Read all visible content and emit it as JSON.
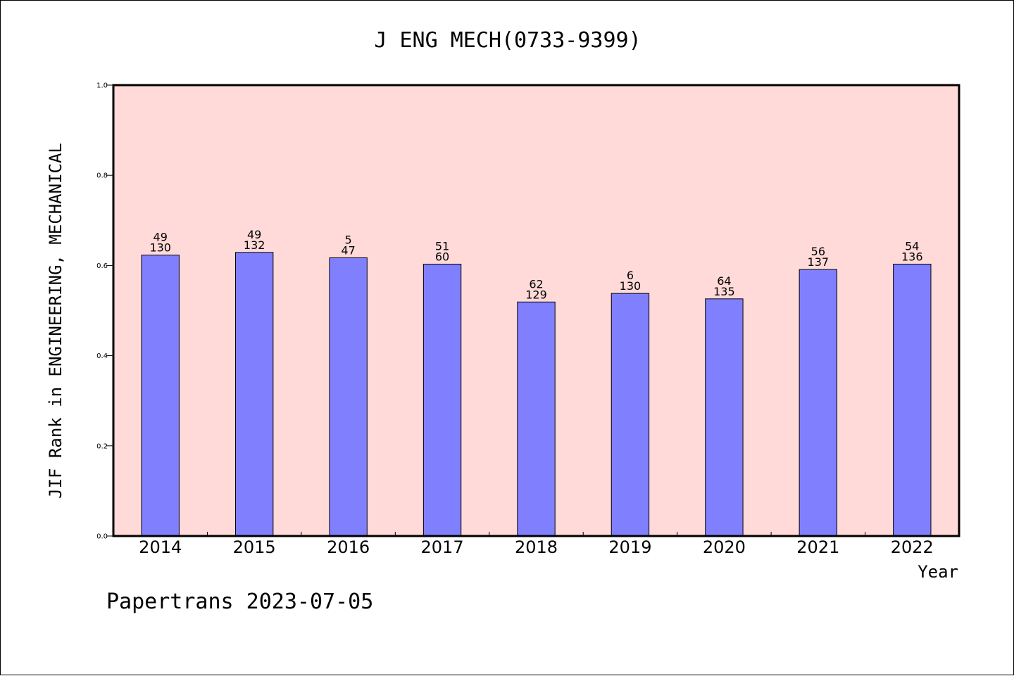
{
  "chart_data": {
    "type": "bar",
    "title": "J ENG MECH(0733-9399)",
    "xlabel": "Year",
    "ylabel": "JIF Rank in ENGINEERING, MECHANICAL",
    "ylim": [
      0,
      1.0
    ],
    "yticks": [
      "0.0",
      "0.2",
      "0.4",
      "0.6",
      "0.8",
      "1.0"
    ],
    "grid": false,
    "categories": [
      "2014",
      "2015",
      "2016",
      "2017",
      "2018",
      "2019",
      "2020",
      "2021",
      "2022"
    ],
    "values": [
      0.623,
      0.629,
      0.617,
      0.603,
      0.519,
      0.538,
      0.526,
      0.591,
      0.603
    ],
    "labels_top": [
      "49",
      "49",
      "5",
      "51",
      "62",
      "6",
      "64",
      "56",
      "54"
    ],
    "labels_bottom": [
      "130",
      "132",
      "47",
      "60",
      "129",
      "130",
      "135",
      "137",
      "136"
    ],
    "colors": {
      "plot_background": "#ffdad8",
      "bar_fill": "#8080ff",
      "bar_stroke": "#000000"
    }
  },
  "footer": {
    "text": "Papertrans 2023-07-05"
  }
}
